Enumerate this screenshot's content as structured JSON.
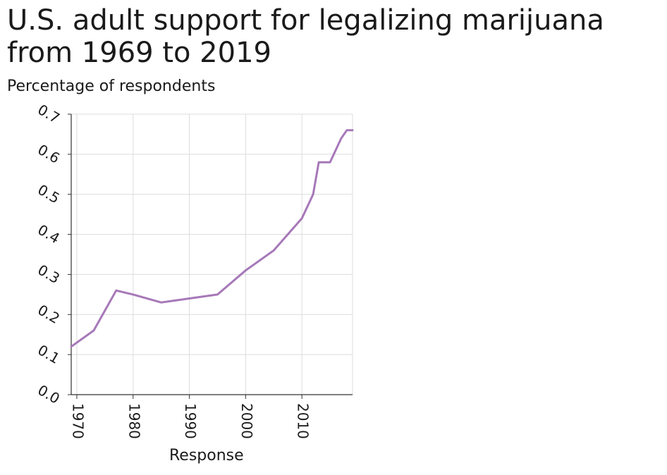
{
  "chart_data": {
    "type": "line",
    "title": "U.S. adult support for legalizing marijuana\nfrom 1969 to 2019",
    "ylabel": "Percentage of respondents",
    "xlabel": "Response",
    "xlim": [
      1969,
      2019
    ],
    "ylim": [
      0.0,
      0.7
    ],
    "x_ticks": [
      1970,
      1980,
      1990,
      2000,
      2010
    ],
    "y_ticks": [
      "0.0",
      "0.1",
      "0.2",
      "0.3",
      "0.4",
      "0.5",
      "0.6",
      "0.7"
    ],
    "grid": true,
    "series": [
      {
        "color": "#a678b8",
        "x": [
          1969,
          1973,
          1977,
          1980,
          1985,
          1990,
          1995,
          2000,
          2005,
          2010,
          2012,
          2013,
          2015,
          2017,
          2018,
          2019
        ],
        "y": [
          0.12,
          0.16,
          0.26,
          0.25,
          0.23,
          0.24,
          0.25,
          0.31,
          0.36,
          0.44,
          0.5,
          0.58,
          0.58,
          0.64,
          0.66,
          0.66
        ]
      }
    ]
  }
}
